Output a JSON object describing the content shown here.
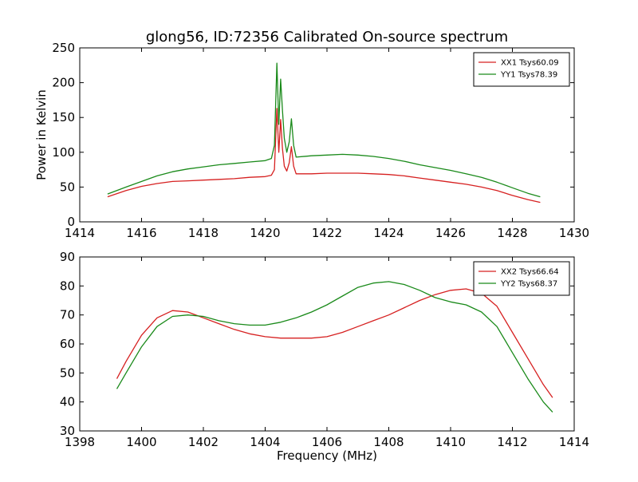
{
  "figure": {
    "title": "glong56, ID:72356 Calibrated On-source spectrum",
    "xlabel": "Frequency (MHz)"
  },
  "chart_data": [
    {
      "type": "line",
      "title": "glong56, ID:72356 Calibrated On-source spectrum",
      "xlabel": "",
      "ylabel": "Power in Kelvin",
      "xlim": [
        1414,
        1430
      ],
      "ylim": [
        0,
        250
      ],
      "xticks": [
        1414,
        1416,
        1418,
        1420,
        1422,
        1424,
        1426,
        1428,
        1430
      ],
      "yticks": [
        0,
        50,
        100,
        150,
        200,
        250
      ],
      "grid": false,
      "legend_position": "top-right",
      "series": [
        {
          "name": "XX1 Tsys60.09",
          "color": "#d62020",
          "x": [
            1414.9,
            1415.5,
            1416.0,
            1416.5,
            1417.0,
            1417.5,
            1418.0,
            1418.5,
            1419.0,
            1419.5,
            1420.0,
            1420.2,
            1420.3,
            1420.38,
            1420.44,
            1420.5,
            1420.56,
            1420.62,
            1420.7,
            1420.78,
            1420.85,
            1420.92,
            1421.0,
            1421.5,
            1422.0,
            1422.5,
            1423.0,
            1423.5,
            1424.0,
            1424.5,
            1425.0,
            1425.5,
            1426.0,
            1426.5,
            1427.0,
            1427.5,
            1428.0,
            1428.5,
            1428.9
          ],
          "y": [
            36,
            45,
            51,
            55,
            58,
            59,
            60,
            61,
            62,
            64,
            65,
            67,
            75,
            163,
            100,
            147,
            105,
            80,
            73,
            85,
            108,
            80,
            69,
            69,
            70,
            70,
            70,
            69,
            68,
            66,
            63,
            60,
            57,
            54,
            50,
            45,
            38,
            32,
            28
          ]
        },
        {
          "name": "YY1 Tsys78.39",
          "color": "#1a8a1a",
          "x": [
            1414.9,
            1415.5,
            1416.0,
            1416.5,
            1417.0,
            1417.5,
            1418.0,
            1418.5,
            1419.0,
            1419.5,
            1420.0,
            1420.2,
            1420.3,
            1420.38,
            1420.44,
            1420.5,
            1420.56,
            1420.62,
            1420.7,
            1420.78,
            1420.85,
            1420.92,
            1421.0,
            1421.5,
            1422.0,
            1422.5,
            1423.0,
            1423.5,
            1424.0,
            1424.5,
            1425.0,
            1425.5,
            1426.0,
            1426.5,
            1427.0,
            1427.5,
            1428.0,
            1428.5,
            1428.9
          ],
          "y": [
            40,
            50,
            58,
            66,
            72,
            76,
            79,
            82,
            84,
            86,
            88,
            91,
            110,
            228,
            140,
            205,
            160,
            120,
            100,
            115,
            148,
            110,
            93,
            95,
            96,
            97,
            96,
            94,
            91,
            87,
            82,
            78,
            74,
            69,
            64,
            57,
            49,
            41,
            36
          ]
        }
      ]
    },
    {
      "type": "line",
      "title": "",
      "xlabel": "Frequency (MHz)",
      "ylabel": "",
      "xlim": [
        1398,
        1414
      ],
      "ylim": [
        30,
        90
      ],
      "xticks": [
        1398,
        1400,
        1402,
        1404,
        1406,
        1408,
        1410,
        1412,
        1414
      ],
      "yticks": [
        30,
        40,
        50,
        60,
        70,
        80,
        90
      ],
      "grid": false,
      "legend_position": "top-right",
      "series": [
        {
          "name": "XX2 Tsys66.64",
          "color": "#d62020",
          "x": [
            1399.2,
            1399.5,
            1400.0,
            1400.5,
            1401.0,
            1401.5,
            1402.0,
            1402.5,
            1403.0,
            1403.5,
            1404.0,
            1404.5,
            1405.0,
            1405.5,
            1406.0,
            1406.5,
            1407.0,
            1407.5,
            1408.0,
            1408.5,
            1409.0,
            1409.5,
            1410.0,
            1410.5,
            1411.0,
            1411.5,
            1412.0,
            1412.5,
            1413.0,
            1413.3
          ],
          "y": [
            48,
            54,
            63,
            69,
            71.5,
            71,
            69,
            67,
            65,
            63.5,
            62.5,
            62,
            62,
            62,
            62.5,
            64,
            66,
            68,
            70,
            72.5,
            75,
            77,
            78.5,
            79,
            77.5,
            73,
            64,
            55,
            46,
            41.5
          ]
        },
        {
          "name": "YY2 Tsys68.37",
          "color": "#1a8a1a",
          "x": [
            1399.2,
            1399.5,
            1400.0,
            1400.5,
            1401.0,
            1401.5,
            1402.0,
            1402.5,
            1403.0,
            1403.5,
            1404.0,
            1404.5,
            1405.0,
            1405.5,
            1406.0,
            1406.5,
            1407.0,
            1407.5,
            1408.0,
            1408.5,
            1409.0,
            1409.5,
            1410.0,
            1410.5,
            1411.0,
            1411.5,
            1412.0,
            1412.5,
            1413.0,
            1413.3
          ],
          "y": [
            44.5,
            50,
            59,
            66,
            69.5,
            70,
            69.5,
            68,
            67,
            66.5,
            66.5,
            67.5,
            69,
            71,
            73.5,
            76.5,
            79.5,
            81,
            81.5,
            80.5,
            78.5,
            76,
            74.5,
            73.5,
            71,
            66,
            57,
            48,
            40,
            36.5
          ]
        }
      ]
    }
  ]
}
